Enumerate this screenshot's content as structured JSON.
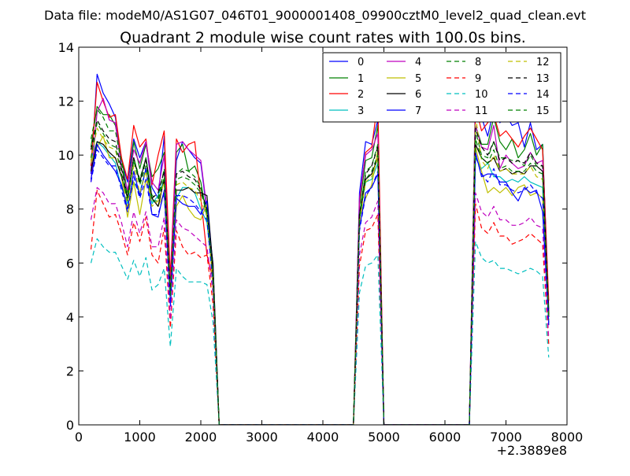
{
  "suptitle": "Data file: modeM0/AS1G07_046T01_9000001408_09900cztM0_level2_quad_clean.evt",
  "chart_data": {
    "type": "line",
    "title": "Quadrant 2 module wise count rates with 100.0s bins.",
    "xlabel": "",
    "ylabel": "",
    "x_offset_label": "+2.3889e8",
    "xlim": [
      0,
      8000
    ],
    "ylim": [
      0,
      14
    ],
    "x_ticks": [
      0,
      1000,
      2000,
      3000,
      4000,
      5000,
      6000,
      7000,
      8000
    ],
    "y_ticks": [
      0,
      2,
      4,
      6,
      8,
      10,
      12,
      14
    ],
    "grid": false,
    "legend": {
      "placement": "top-right",
      "columns": 4
    },
    "x": [
      100,
      200,
      300,
      400,
      500,
      600,
      700,
      800,
      900,
      1000,
      1100,
      1200,
      1300,
      1400,
      1500,
      1600,
      1700,
      1800,
      1900,
      2000,
      2100,
      2200,
      2300,
      2400,
      2500,
      4500,
      4600,
      4700,
      4800,
      4900,
      5000,
      5100,
      6300,
      6400,
      6500,
      6600,
      6700,
      6800,
      6900,
      7000,
      7100,
      7200,
      7300,
      7400,
      7500,
      7600,
      7700
    ],
    "series": [
      {
        "name": "0",
        "color": "#0000ff",
        "dash": "solid",
        "values": [
          null,
          9.3,
          13.0,
          12.3,
          11.9,
          11.4,
          9.8,
          9.0,
          10.6,
          9.9,
          10.5,
          8.8,
          8.4,
          10.7,
          5.1,
          9.8,
          10.5,
          10.2,
          9.9,
          9.7,
          7.9,
          6.0,
          0,
          0,
          0,
          0,
          8.6,
          10.5,
          10.4,
          11.3,
          0,
          0,
          0,
          0,
          12.3,
          11.4,
          10.7,
          11.7,
          11.2,
          11.5,
          11.1,
          11.2,
          10.3,
          11.2,
          10.2,
          10.4,
          4.3
        ]
      },
      {
        "name": "1",
        "color": "#008000",
        "dash": "solid",
        "values": [
          null,
          10.3,
          11.8,
          11.5,
          11.5,
          11.1,
          9.9,
          8.6,
          10.5,
          9.5,
          10.4,
          9.2,
          9.5,
          10.1,
          4.9,
          10.1,
          10.4,
          9.4,
          9.6,
          9.0,
          7.7,
          6.0,
          0,
          0,
          0,
          0,
          8.1,
          9.8,
          9.9,
          11.1,
          0,
          0,
          0,
          0,
          11.1,
          10.4,
          10.4,
          11.4,
          10.5,
          10.2,
          10.6,
          9.9,
          10.2,
          10.8,
          10.0,
          10.4,
          4.1
        ]
      },
      {
        "name": "2",
        "color": "#ff0000",
        "dash": "solid",
        "values": [
          null,
          9.6,
          12.7,
          12.0,
          11.4,
          11.5,
          9.9,
          9.1,
          11.1,
          10.3,
          10.6,
          8.9,
          10.0,
          10.9,
          5.5,
          10.6,
          10.1,
          10.4,
          10.5,
          8.4,
          6.3,
          5.4,
          0,
          0,
          0,
          0,
          8.3,
          10.1,
          10.3,
          12.0,
          0,
          0,
          0,
          0,
          11.8,
          10.9,
          11.2,
          11.5,
          10.7,
          10.9,
          10.6,
          10.3,
          10.7,
          11.0,
          10.6,
          10.2,
          4.6
        ]
      },
      {
        "name": "3",
        "color": "#00bfbf",
        "dash": "solid",
        "values": [
          null,
          9.8,
          10.5,
          10.3,
          10.0,
          9.7,
          8.8,
          8.2,
          9.0,
          8.6,
          9.5,
          8.2,
          8.5,
          9.1,
          4.7,
          8.4,
          8.8,
          8.8,
          8.6,
          8.0,
          7.5,
          5.4,
          0,
          0,
          0,
          0,
          7.8,
          9.0,
          9.1,
          9.7,
          0,
          0,
          0,
          0,
          9.9,
          9.5,
          9.7,
          9.2,
          9.2,
          9.0,
          9.1,
          9.0,
          9.2,
          9.0,
          8.9,
          8.8,
          3.7
        ]
      },
      {
        "name": "4",
        "color": "#bf00bf",
        "dash": "solid",
        "values": [
          null,
          9.0,
          11.6,
          12.1,
          11.3,
          11.2,
          9.5,
          8.7,
          10.2,
          9.7,
          10.5,
          9.0,
          8.7,
          10.0,
          5.0,
          10.4,
          10.5,
          10.2,
          10.0,
          9.8,
          8.0,
          5.9,
          0,
          0,
          0,
          0,
          8.4,
          10.0,
          10.2,
          10.8,
          0,
          0,
          0,
          0,
          11.1,
          10.3,
          10.2,
          11.1,
          9.5,
          10.0,
          9.7,
          9.5,
          9.6,
          10.1,
          9.7,
          9.8,
          4.1
        ]
      },
      {
        "name": "5",
        "color": "#bfbf00",
        "dash": "solid",
        "values": [
          null,
          9.7,
          10.3,
          10.7,
          9.9,
          9.9,
          9.2,
          7.7,
          9.0,
          7.8,
          9.1,
          8.4,
          8.1,
          8.6,
          4.8,
          8.1,
          8.5,
          8.0,
          7.7,
          7.6,
          8.2,
          5.0,
          0,
          0,
          0,
          0,
          7.7,
          8.4,
          8.9,
          10.2,
          0,
          0,
          0,
          0,
          10.3,
          9.4,
          8.6,
          8.8,
          8.6,
          8.8,
          8.5,
          8.8,
          8.9,
          8.5,
          8.6,
          8.4,
          3.7
        ]
      },
      {
        "name": "6",
        "color": "#000000",
        "dash": "solid",
        "values": [
          null,
          9.4,
          10.5,
          10.4,
          10.1,
          9.9,
          9.2,
          8.4,
          9.9,
          9.0,
          9.9,
          8.4,
          8.1,
          9.1,
          4.6,
          8.7,
          8.7,
          8.8,
          8.6,
          8.6,
          8.5,
          5.8,
          0,
          0,
          0,
          0,
          7.8,
          9.1,
          9.3,
          9.9,
          0,
          0,
          0,
          0,
          10.4,
          9.9,
          9.7,
          9.9,
          9.4,
          9.5,
          9.3,
          9.4,
          9.3,
          9.6,
          9.6,
          9.4,
          4.1
        ]
      },
      {
        "name": "7",
        "color": "#0000ff",
        "dash": "solid",
        "values": [
          null,
          9.1,
          10.4,
          10.0,
          9.7,
          9.4,
          8.9,
          8.0,
          9.4,
          8.5,
          9.5,
          7.8,
          7.7,
          8.7,
          4.5,
          8.4,
          8.2,
          8.1,
          8.1,
          7.8,
          8.3,
          5.4,
          0,
          0,
          0,
          0,
          7.3,
          8.6,
          8.8,
          9.3,
          0,
          0,
          0,
          0,
          10.1,
          9.2,
          9.3,
          9.3,
          9.0,
          9.0,
          8.6,
          8.3,
          8.8,
          8.6,
          8.7,
          7.9,
          3.8
        ]
      },
      {
        "name": "8",
        "color": "#008000",
        "dash": "dash",
        "values": [
          null,
          10.6,
          11.7,
          11.4,
          10.9,
          10.9,
          9.7,
          8.4,
          9.9,
          9.1,
          9.9,
          8.5,
          8.4,
          9.5,
          4.8,
          9.3,
          9.5,
          9.4,
          9.2,
          8.8,
          7.7,
          5.6,
          0,
          0,
          0,
          0,
          7.7,
          9.4,
          9.6,
          10.4,
          0,
          0,
          0,
          0,
          10.9,
          10.0,
          9.9,
          10.5,
          9.9,
          9.9,
          9.8,
          9.8,
          9.6,
          10.0,
          9.6,
          9.6,
          4.0
        ]
      },
      {
        "name": "9",
        "color": "#ff0000",
        "dash": "dash",
        "values": [
          null,
          6.5,
          8.7,
          8.2,
          7.7,
          7.8,
          7.1,
          6.3,
          7.5,
          6.8,
          7.7,
          6.3,
          6.0,
          7.3,
          3.6,
          7.2,
          6.6,
          6.3,
          6.4,
          6.2,
          6.3,
          4.5,
          0,
          0,
          0,
          0,
          5.9,
          7.2,
          7.3,
          7.8,
          0,
          0,
          0,
          0,
          8.2,
          7.3,
          7.1,
          7.5,
          7.0,
          7.0,
          6.7,
          6.8,
          6.9,
          7.1,
          6.9,
          6.7,
          3.0
        ]
      },
      {
        "name": "10",
        "color": "#00bfbf",
        "dash": "dash",
        "values": [
          null,
          6.0,
          6.9,
          6.6,
          6.4,
          6.4,
          5.9,
          5.4,
          6.1,
          5.5,
          6.2,
          5.0,
          5.2,
          5.8,
          2.9,
          5.8,
          5.5,
          5.3,
          5.3,
          5.3,
          5.2,
          3.8,
          0,
          0,
          0,
          0,
          4.9,
          5.9,
          6.0,
          6.3,
          0,
          0,
          0,
          0,
          6.8,
          6.2,
          6.0,
          6.1,
          5.8,
          5.8,
          5.7,
          5.6,
          5.7,
          5.8,
          5.7,
          5.5,
          2.5
        ]
      },
      {
        "name": "11",
        "color": "#bf00bf",
        "dash": "dash",
        "values": [
          null,
          7.6,
          8.8,
          8.6,
          8.2,
          8.2,
          7.5,
          6.6,
          7.9,
          7.1,
          7.9,
          6.6,
          6.6,
          7.7,
          3.9,
          7.6,
          7.3,
          7.2,
          7.0,
          6.8,
          6.6,
          4.9,
          0,
          0,
          0,
          0,
          6.3,
          7.5,
          7.7,
          8.3,
          0,
          0,
          0,
          0,
          8.6,
          7.9,
          7.7,
          8.1,
          7.6,
          7.6,
          7.4,
          7.4,
          7.5,
          7.7,
          7.4,
          7.3,
          3.2
        ]
      },
      {
        "name": "12",
        "color": "#bfbf00",
        "dash": "dash",
        "values": [
          null,
          9.8,
          11.0,
          10.6,
          10.3,
          10.2,
          9.3,
          8.1,
          9.6,
          8.6,
          9.4,
          8.1,
          8.3,
          9.0,
          4.7,
          8.9,
          9.0,
          8.8,
          8.7,
          8.3,
          7.8,
          5.4,
          0,
          0,
          0,
          0,
          7.5,
          9.0,
          9.2,
          9.9,
          0,
          0,
          0,
          0,
          11.5,
          9.8,
          9.5,
          10.0,
          9.4,
          9.5,
          9.3,
          9.3,
          9.3,
          9.6,
          9.2,
          9.1,
          3.9
        ]
      },
      {
        "name": "13",
        "color": "#000000",
        "dash": "dash",
        "values": [
          null,
          10.2,
          11.3,
          10.9,
          10.6,
          10.5,
          9.5,
          8.4,
          9.9,
          9.0,
          9.8,
          8.4,
          8.6,
          9.4,
          4.9,
          9.3,
          9.4,
          9.2,
          9.1,
          8.7,
          8.0,
          5.6,
          0,
          0,
          0,
          0,
          7.8,
          9.3,
          9.6,
          10.3,
          0,
          0,
          0,
          0,
          11.0,
          10.3,
          10.0,
          10.5,
          9.8,
          9.9,
          9.7,
          9.8,
          9.7,
          10.1,
          9.7,
          9.6,
          4.0
        ]
      },
      {
        "name": "14",
        "color": "#0000ff",
        "dash": "dash",
        "values": [
          null,
          9.0,
          10.2,
          9.9,
          9.6,
          9.6,
          8.7,
          7.9,
          9.2,
          8.4,
          9.1,
          7.8,
          7.8,
          8.6,
          4.4,
          8.5,
          8.5,
          8.4,
          8.2,
          7.9,
          7.6,
          5.2,
          0,
          0,
          0,
          0,
          7.2,
          8.5,
          8.8,
          9.4,
          0,
          0,
          0,
          0,
          10.0,
          9.3,
          9.0,
          9.5,
          8.9,
          8.9,
          8.7,
          8.6,
          8.7,
          8.9,
          8.6,
          8.4,
          3.7
        ]
      },
      {
        "name": "15",
        "color": "#008000",
        "dash": "dash",
        "values": [
          null,
          9.9,
          11.2,
          10.8,
          10.4,
          10.3,
          9.3,
          8.3,
          9.8,
          8.9,
          9.6,
          8.3,
          8.3,
          9.2,
          4.8,
          9.1,
          9.2,
          9.1,
          8.9,
          8.6,
          7.9,
          5.5,
          0,
          0,
          0,
          0,
          7.6,
          9.1,
          9.4,
          10.0,
          0,
          0,
          0,
          0,
          10.6,
          9.9,
          9.7,
          10.2,
          9.5,
          9.6,
          9.4,
          9.4,
          9.4,
          9.7,
          9.4,
          9.3,
          3.9
        ]
      }
    ]
  }
}
